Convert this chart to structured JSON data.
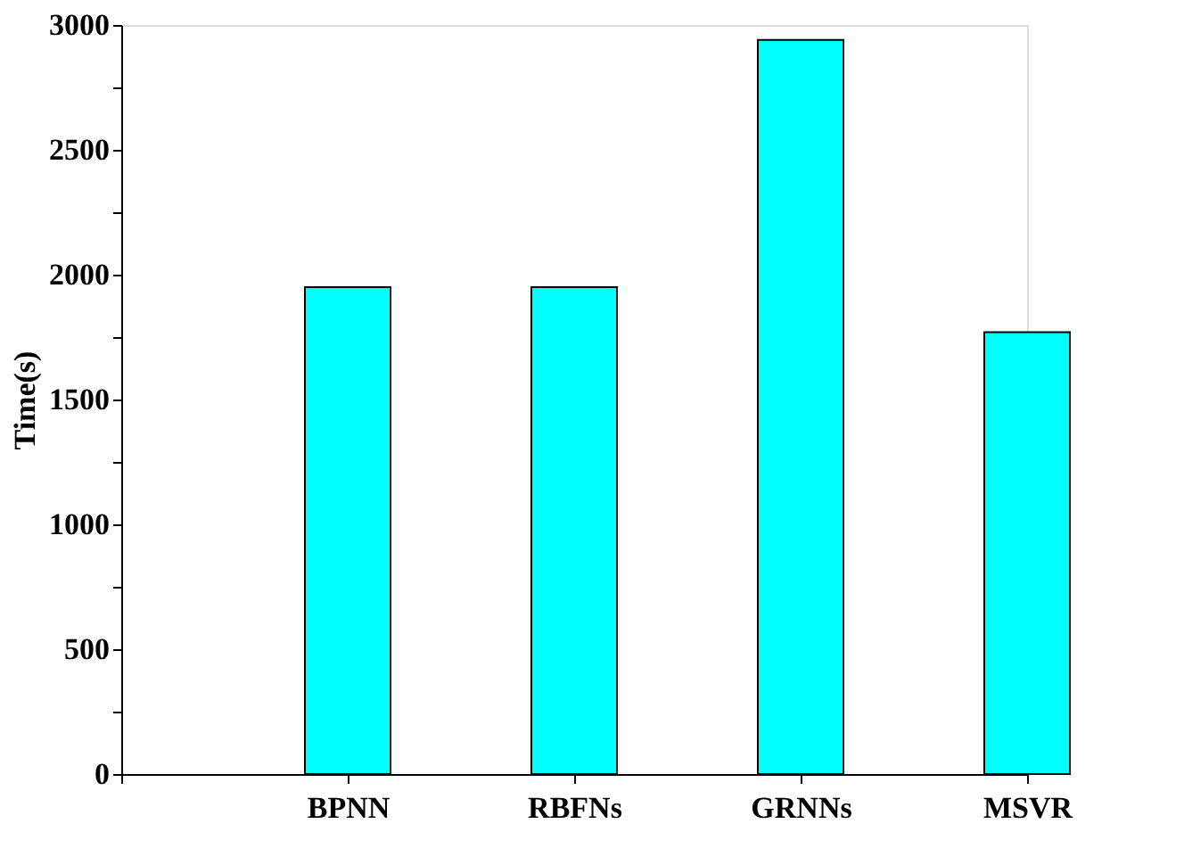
{
  "chart_data": {
    "type": "bar",
    "ylabel": "Time(s)",
    "categories": [
      null,
      "BPNN",
      "RBFNs",
      "GRNNs",
      "MSVR"
    ],
    "values": [
      null,
      1950,
      1950,
      2940,
      1770
    ],
    "color": "#00ffff",
    "ylim": [
      0,
      3000
    ],
    "yticks": [
      0,
      {
        "value": 250,
        "label": null
      },
      500,
      {
        "value": 750,
        "label": null
      },
      1000,
      {
        "value": 1250,
        "label": null
      },
      1500,
      {
        "value": 1750,
        "label": null
      },
      2000,
      {
        "value": 2250,
        "label": null
      },
      2500,
      {
        "value": 2750,
        "label": null
      },
      3000
    ],
    "grid": false
  }
}
